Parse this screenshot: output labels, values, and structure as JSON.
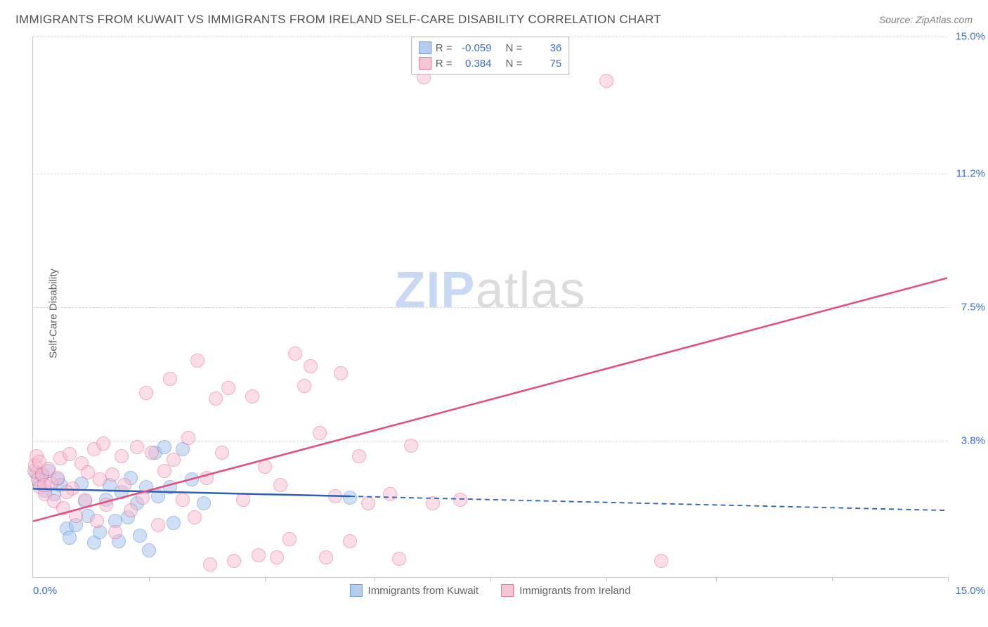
{
  "title": "IMMIGRANTS FROM KUWAIT VS IMMIGRANTS FROM IRELAND SELF-CARE DISABILITY CORRELATION CHART",
  "source_label": "Source:",
  "source_name": "ZipAtlas.com",
  "ylabel": "Self-Care Disability",
  "watermark_a": "ZIP",
  "watermark_b": "atlas",
  "chart": {
    "type": "scatter",
    "xlim": [
      0,
      15
    ],
    "ylim": [
      0,
      15
    ],
    "xmin_label": "0.0%",
    "xmax_label": "15.0%",
    "yticks": [
      {
        "v": 3.8,
        "label": "3.8%"
      },
      {
        "v": 7.5,
        "label": "7.5%"
      },
      {
        "v": 11.2,
        "label": "11.2%"
      },
      {
        "v": 15.0,
        "label": "15.0%"
      }
    ],
    "xtick_positions": [
      1.9,
      3.8,
      5.6,
      7.5,
      9.4,
      11.2,
      13.1,
      15.0
    ],
    "grid_color": "#d8d8d8",
    "background_color": "#ffffff",
    "axis_color": "#c8c8c8",
    "tick_label_color": "#3b6fd4",
    "marker_radius": 10,
    "marker_stroke_width": 1.2,
    "trend_line_width": 2.5
  },
  "series": [
    {
      "key": "kuwait",
      "label": "Immigrants from Kuwait",
      "fill": "#a8c6ee",
      "stroke": "#5a8bd6",
      "fill_opacity": 0.55,
      "R": "-0.059",
      "N": "36",
      "trend": {
        "x1": 0,
        "y1": 2.45,
        "x2": 15,
        "y2": 1.85,
        "solid_until_x": 5.2,
        "color": "#2c5fb5"
      },
      "points": [
        [
          0.05,
          2.9
        ],
        [
          0.1,
          2.6
        ],
        [
          0.15,
          2.8
        ],
        [
          0.2,
          2.4
        ],
        [
          0.25,
          2.95
        ],
        [
          0.35,
          2.3
        ],
        [
          0.4,
          2.7
        ],
        [
          0.45,
          2.55
        ],
        [
          0.55,
          1.35
        ],
        [
          0.6,
          1.1
        ],
        [
          0.7,
          1.45
        ],
        [
          0.8,
          2.6
        ],
        [
          0.85,
          2.1
        ],
        [
          0.9,
          1.7
        ],
        [
          1.0,
          0.95
        ],
        [
          1.1,
          1.25
        ],
        [
          1.2,
          2.15
        ],
        [
          1.25,
          2.55
        ],
        [
          1.35,
          1.55
        ],
        [
          1.4,
          1.0
        ],
        [
          1.45,
          2.35
        ],
        [
          1.55,
          1.65
        ],
        [
          1.6,
          2.75
        ],
        [
          1.7,
          2.05
        ],
        [
          1.75,
          1.15
        ],
        [
          1.85,
          2.5
        ],
        [
          1.9,
          0.75
        ],
        [
          2.0,
          3.45
        ],
        [
          2.05,
          2.25
        ],
        [
          2.15,
          3.6
        ],
        [
          2.25,
          2.5
        ],
        [
          2.3,
          1.5
        ],
        [
          2.45,
          3.55
        ],
        [
          2.6,
          2.7
        ],
        [
          2.8,
          2.05
        ],
        [
          5.2,
          2.2
        ]
      ]
    },
    {
      "key": "ireland",
      "label": "Immigrants from Ireland",
      "fill": "#f6bdd0",
      "stroke": "#e85f8d",
      "fill_opacity": 0.5,
      "R": "0.384",
      "N": "75",
      "trend": {
        "x1": 0,
        "y1": 1.55,
        "x2": 15,
        "y2": 8.3,
        "solid_until_x": 15,
        "color": "#e74a7d"
      },
      "points": [
        [
          0.02,
          2.95
        ],
        [
          0.04,
          3.1
        ],
        [
          0.06,
          3.35
        ],
        [
          0.08,
          2.7
        ],
        [
          0.1,
          3.2
        ],
        [
          0.12,
          2.5
        ],
        [
          0.15,
          2.85
        ],
        [
          0.2,
          2.3
        ],
        [
          0.25,
          3.0
        ],
        [
          0.3,
          2.6
        ],
        [
          0.35,
          2.1
        ],
        [
          0.4,
          2.75
        ],
        [
          0.45,
          3.3
        ],
        [
          0.5,
          1.9
        ],
        [
          0.6,
          3.4
        ],
        [
          0.65,
          2.45
        ],
        [
          0.7,
          1.7
        ],
        [
          0.8,
          3.15
        ],
        [
          0.85,
          2.15
        ],
        [
          0.9,
          2.9
        ],
        [
          1.0,
          3.55
        ],
        [
          1.05,
          1.55
        ],
        [
          1.15,
          3.7
        ],
        [
          1.2,
          2.0
        ],
        [
          1.3,
          2.85
        ],
        [
          1.35,
          1.25
        ],
        [
          1.45,
          3.35
        ],
        [
          1.5,
          2.55
        ],
        [
          1.6,
          1.85
        ],
        [
          1.7,
          3.6
        ],
        [
          1.8,
          2.2
        ],
        [
          1.85,
          5.1
        ],
        [
          1.95,
          3.45
        ],
        [
          2.05,
          1.45
        ],
        [
          2.15,
          2.95
        ],
        [
          2.25,
          5.5
        ],
        [
          2.3,
          3.25
        ],
        [
          2.45,
          2.15
        ],
        [
          2.55,
          3.85
        ],
        [
          2.65,
          1.65
        ],
        [
          2.7,
          6.0
        ],
        [
          2.85,
          2.75
        ],
        [
          2.9,
          0.35
        ],
        [
          3.0,
          4.95
        ],
        [
          3.1,
          3.45
        ],
        [
          3.2,
          5.25
        ],
        [
          3.3,
          0.45
        ],
        [
          3.45,
          2.15
        ],
        [
          3.6,
          5.0
        ],
        [
          3.7,
          0.6
        ],
        [
          3.8,
          3.05
        ],
        [
          4.0,
          0.55
        ],
        [
          4.05,
          2.55
        ],
        [
          4.2,
          1.05
        ],
        [
          4.3,
          6.2
        ],
        [
          4.45,
          5.3
        ],
        [
          4.55,
          5.85
        ],
        [
          4.7,
          4.0
        ],
        [
          4.8,
          0.55
        ],
        [
          4.95,
          2.25
        ],
        [
          5.05,
          5.65
        ],
        [
          5.2,
          1.0
        ],
        [
          5.35,
          3.35
        ],
        [
          5.5,
          2.05
        ],
        [
          5.85,
          2.3
        ],
        [
          6.0,
          0.5
        ],
        [
          6.2,
          3.65
        ],
        [
          6.4,
          13.85
        ],
        [
          6.55,
          2.05
        ],
        [
          7.0,
          2.15
        ],
        [
          9.4,
          13.75
        ],
        [
          10.3,
          0.45
        ],
        [
          0.55,
          2.35
        ],
        [
          1.1,
          2.7
        ],
        [
          0.18,
          2.55
        ]
      ]
    }
  ],
  "legend_top": {
    "R_label": "R =",
    "N_label": "N ="
  }
}
